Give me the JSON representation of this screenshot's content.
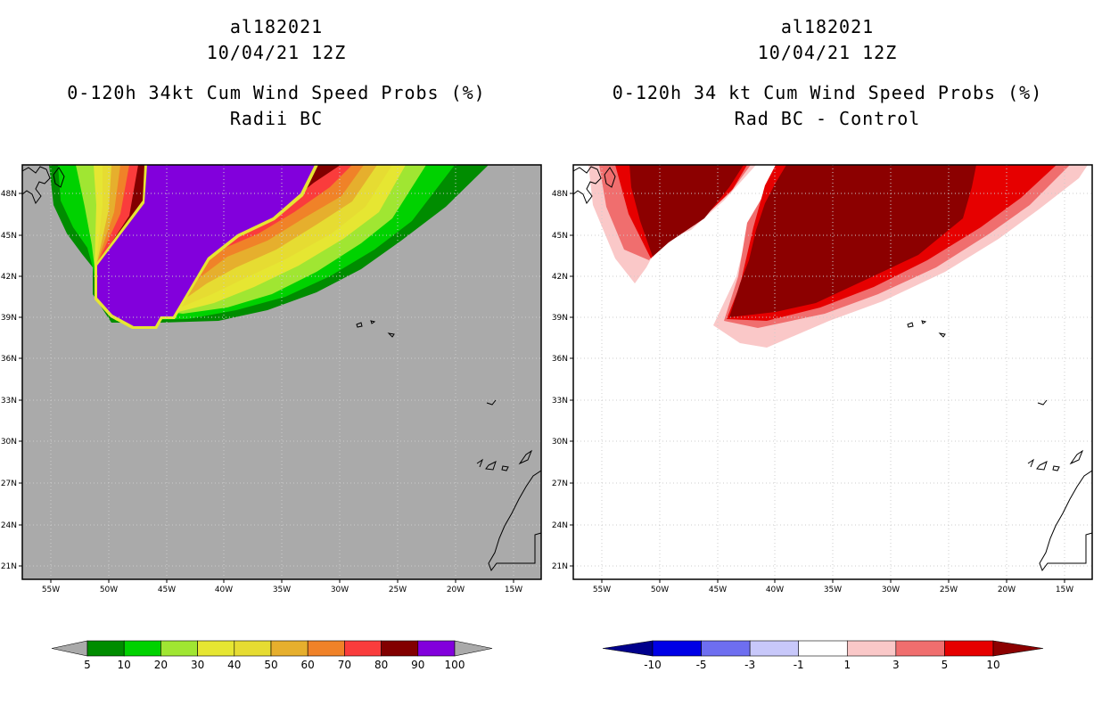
{
  "left_panel": {
    "title_lines": [
      "al182021",
      "10/04/21 12Z",
      "0-120h 34kt Cum Wind Speed Probs (%)",
      "Radii BC"
    ],
    "background_color": "#aaaaaa",
    "colorbar": {
      "labels": [
        "5",
        "10",
        "20",
        "30",
        "40",
        "50",
        "60",
        "70",
        "80",
        "90",
        "100"
      ],
      "colors": [
        "#008c00",
        "#00d200",
        "#00e600",
        "#a0e632",
        "#e6e632",
        "#e6dc32",
        "#e6af2d",
        "#f08228",
        "#fa3c3c",
        "#820000",
        "#8200dc"
      ]
    }
  },
  "right_panel": {
    "title_lines": [
      "al182021",
      "10/04/21 12Z",
      "0-120h 34 kt Cum Wind Speed Probs (%)",
      "Rad BC - Control"
    ],
    "background_color": "#ffffff",
    "colorbar": {
      "labels": [
        "-10",
        "-5",
        "-3",
        "-1",
        "1",
        "3",
        "5",
        "10"
      ],
      "colors": [
        "#00008c",
        "#0000e6",
        "#6e6ef0",
        "#c8c8fa",
        "#ffffff",
        "#fac8c8",
        "#f06e6e",
        "#e60000",
        "#8c0000"
      ]
    }
  },
  "map_axes": {
    "lat_labels": [
      "48N",
      "45N",
      "42N",
      "39N",
      "36N",
      "33N",
      "30N",
      "27N",
      "24N",
      "21N"
    ],
    "lon_labels": [
      "55W",
      "50W",
      "45W",
      "40W",
      "35W",
      "30W",
      "25W",
      "20W",
      "15W"
    ]
  }
}
